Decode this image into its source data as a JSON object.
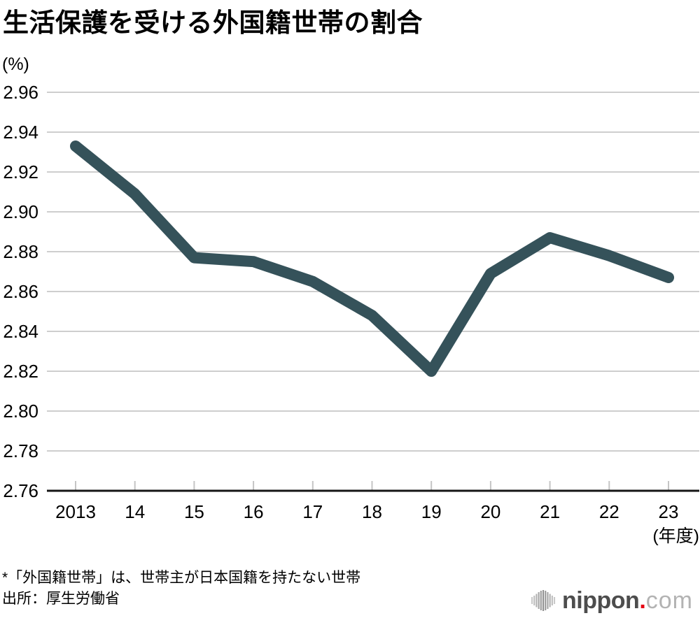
{
  "header": {
    "title": "生活保護を受ける外国籍世帯の割合"
  },
  "chart_data": {
    "type": "line",
    "title": "生活保護を受ける外国籍世帯の割合",
    "ylabel": "(%)",
    "xlabel": "(年度)",
    "x": [
      2013,
      2014,
      2015,
      2016,
      2017,
      2018,
      2019,
      2020,
      2021,
      2022,
      2023
    ],
    "x_tick_labels": [
      "2013",
      "14",
      "15",
      "16",
      "17",
      "18",
      "19",
      "20",
      "21",
      "22",
      "23"
    ],
    "values": [
      2.933,
      2.909,
      2.877,
      2.875,
      2.865,
      2.848,
      2.82,
      2.869,
      2.887,
      2.878,
      2.867
    ],
    "y_tick_labels": [
      "2.96",
      "2.94",
      "2.92",
      "2.90",
      "2.88",
      "2.86",
      "2.84",
      "2.82",
      "2.80",
      "2.78",
      "2.76"
    ],
    "ylim": [
      2.76,
      2.96
    ],
    "grid": true,
    "legend": "none",
    "line_color": "#35525a",
    "grid_color": "#cecece",
    "tick_color": "#c5c5c5",
    "axis_color": "#151515",
    "text_color": "#000000"
  },
  "footnotes": {
    "note": "*「外国籍世帯」は、世帯主が日本国籍を持たない世帯",
    "source": "出所：厚生労働省"
  },
  "logo": {
    "brand_bold": "nippon",
    "brand_dot": ".",
    "brand_rest": "com",
    "dot_color": "#e60012",
    "icon": "sound-bars-icon"
  }
}
